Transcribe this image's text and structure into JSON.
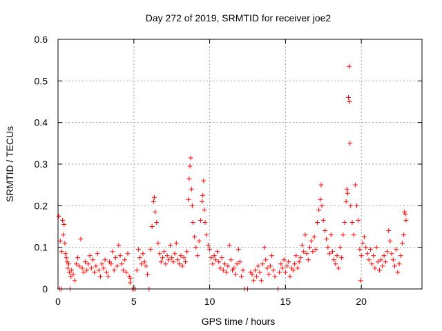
{
  "chart_data": {
    "type": "scatter",
    "title": "Day 272 of 2019, SRMTID for receiver joe2",
    "xlabel": "GPS time / hours",
    "ylabel": "SRMTID / TECUs",
    "xlim": [
      0,
      24
    ],
    "ylim": [
      0,
      0.6
    ],
    "xticks": [
      0,
      5,
      10,
      15,
      20
    ],
    "xtick_labels": [
      "0",
      "5",
      "10",
      "15",
      "20"
    ],
    "yticks": [
      0,
      0.1,
      0.2,
      0.3,
      0.4,
      0.5,
      0.6
    ],
    "ytick_labels": [
      "0",
      "0.1",
      "0.2",
      "0.3",
      "0.4",
      "0.5",
      "0.6"
    ],
    "grid": true,
    "marker": "+",
    "color": "#ff0000",
    "series": [
      {
        "name": "SRMTID",
        "points": [
          [
            0.05,
            0.175
          ],
          [
            0.1,
            0.0
          ],
          [
            0.15,
            0.115
          ],
          [
            0.2,
            0.0
          ],
          [
            0.25,
            0.09
          ],
          [
            0.3,
            0.165
          ],
          [
            0.35,
            0.13
          ],
          [
            0.4,
            0.155
          ],
          [
            0.45,
            0.11
          ],
          [
            0.5,
            0.085
          ],
          [
            0.55,
            0.075
          ],
          [
            0.6,
            0.065
          ],
          [
            0.65,
            0.05
          ],
          [
            0.7,
            0.06
          ],
          [
            0.75,
            0.04
          ],
          [
            0.8,
            0.0
          ],
          [
            0.85,
            0.03
          ],
          [
            0.9,
            0.045
          ],
          [
            1.0,
            0.035
          ],
          [
            1.1,
            0.02
          ],
          [
            1.2,
            0.06
          ],
          [
            1.3,
            0.075
          ],
          [
            1.4,
            0.055
          ],
          [
            1.5,
            0.12
          ],
          [
            1.6,
            0.05
          ],
          [
            1.7,
            0.04
          ],
          [
            1.8,
            0.065
          ],
          [
            1.9,
            0.045
          ],
          [
            2.0,
            0.06
          ],
          [
            2.1,
            0.08
          ],
          [
            2.2,
            0.05
          ],
          [
            2.3,
            0.07
          ],
          [
            2.4,
            0.04
          ],
          [
            2.5,
            0.055
          ],
          [
            2.6,
            0.085
          ],
          [
            2.7,
            0.045
          ],
          [
            2.8,
            0.03
          ],
          [
            2.9,
            0.06
          ],
          [
            3.0,
            0.05
          ],
          [
            3.1,
            0.07
          ],
          [
            3.2,
            0.04
          ],
          [
            3.3,
            0.03
          ],
          [
            3.4,
            0.065
          ],
          [
            3.5,
            0.06
          ],
          [
            3.6,
            0.09
          ],
          [
            3.7,
            0.045
          ],
          [
            3.8,
            0.075
          ],
          [
            3.9,
            0.055
          ],
          [
            4.0,
            0.105
          ],
          [
            4.1,
            0.08
          ],
          [
            4.2,
            0.06
          ],
          [
            4.3,
            0.045
          ],
          [
            4.4,
            0.07
          ],
          [
            4.5,
            0.04
          ],
          [
            4.6,
            0.085
          ],
          [
            4.7,
            0.03
          ],
          [
            4.75,
            0.015
          ],
          [
            4.8,
            0.025
          ],
          [
            4.9,
            0.0
          ],
          [
            5.0,
            0.0
          ],
          [
            5.1,
            0.0
          ],
          [
            5.2,
            0.045
          ],
          [
            5.3,
            0.095
          ],
          [
            5.4,
            0.075
          ],
          [
            5.5,
            0.06
          ],
          [
            5.6,
            0.085
          ],
          [
            5.7,
            0.065
          ],
          [
            5.8,
            0.055
          ],
          [
            5.9,
            0.035
          ],
          [
            6.0,
            0.0
          ],
          [
            6.1,
            0.095
          ],
          [
            6.2,
            0.15
          ],
          [
            6.3,
            0.21
          ],
          [
            6.35,
            0.22
          ],
          [
            6.4,
            0.185
          ],
          [
            6.5,
            0.16
          ],
          [
            6.6,
            0.11
          ],
          [
            6.7,
            0.085
          ],
          [
            6.8,
            0.065
          ],
          [
            6.9,
            0.075
          ],
          [
            7.0,
            0.09
          ],
          [
            7.1,
            0.06
          ],
          [
            7.2,
            0.08
          ],
          [
            7.3,
            0.07
          ],
          [
            7.4,
            0.105
          ],
          [
            7.5,
            0.075
          ],
          [
            7.6,
            0.065
          ],
          [
            7.7,
            0.085
          ],
          [
            7.8,
            0.11
          ],
          [
            7.9,
            0.07
          ],
          [
            8.0,
            0.06
          ],
          [
            8.1,
            0.08
          ],
          [
            8.2,
            0.055
          ],
          [
            8.3,
            0.075
          ],
          [
            8.4,
            0.065
          ],
          [
            8.5,
            0.09
          ],
          [
            8.6,
            0.215
          ],
          [
            8.65,
            0.265
          ],
          [
            8.7,
            0.295
          ],
          [
            8.75,
            0.315
          ],
          [
            8.8,
            0.24
          ],
          [
            8.85,
            0.2
          ],
          [
            8.9,
            0.16
          ],
          [
            9.0,
            0.125
          ],
          [
            9.1,
            0.1
          ],
          [
            9.2,
            0.08
          ],
          [
            9.3,
            0.115
          ],
          [
            9.4,
            0.165
          ],
          [
            9.5,
            0.21
          ],
          [
            9.55,
            0.225
          ],
          [
            9.6,
            0.26
          ],
          [
            9.65,
            0.19
          ],
          [
            9.7,
            0.16
          ],
          [
            9.8,
            0.13
          ],
          [
            9.9,
            0.105
          ],
          [
            10.0,
            0.095
          ],
          [
            10.1,
            0.075
          ],
          [
            10.2,
            0.06
          ],
          [
            10.3,
            0.08
          ],
          [
            10.4,
            0.07
          ],
          [
            10.5,
            0.09
          ],
          [
            10.6,
            0.065
          ],
          [
            10.7,
            0.05
          ],
          [
            10.8,
            0.075
          ],
          [
            10.9,
            0.045
          ],
          [
            11.0,
            0.06
          ],
          [
            11.1,
            0.04
          ],
          [
            11.2,
            0.055
          ],
          [
            11.3,
            0.105
          ],
          [
            11.4,
            0.07
          ],
          [
            11.5,
            0.045
          ],
          [
            11.6,
            0.05
          ],
          [
            11.7,
            0.035
          ],
          [
            11.8,
            0.06
          ],
          [
            11.9,
            0.095
          ],
          [
            12.0,
            0.065
          ],
          [
            12.1,
            0.03
          ],
          [
            12.2,
            0.045
          ],
          [
            12.3,
            0.0
          ],
          [
            12.5,
            0.0
          ],
          [
            12.7,
            0.04
          ],
          [
            12.8,
            0.035
          ],
          [
            12.9,
            0.02
          ],
          [
            13.0,
            0.045
          ],
          [
            13.1,
            0.03
          ],
          [
            13.2,
            0.055
          ],
          [
            13.3,
            0.04
          ],
          [
            13.4,
            0.02
          ],
          [
            13.5,
            0.06
          ],
          [
            13.6,
            0.1
          ],
          [
            13.7,
            0.07
          ],
          [
            13.8,
            0.05
          ],
          [
            13.9,
            0.035
          ],
          [
            14.0,
            0.055
          ],
          [
            14.1,
            0.08
          ],
          [
            14.2,
            0.045
          ],
          [
            14.3,
            0.03
          ],
          [
            14.5,
            0.0
          ],
          [
            14.6,
            0.04
          ],
          [
            14.7,
            0.06
          ],
          [
            14.8,
            0.05
          ],
          [
            14.9,
            0.07
          ],
          [
            15.0,
            0.04
          ],
          [
            15.1,
            0.055
          ],
          [
            15.2,
            0.065
          ],
          [
            15.3,
            0.03
          ],
          [
            15.4,
            0.05
          ],
          [
            15.5,
            0.045
          ],
          [
            15.6,
            0.06
          ],
          [
            15.7,
            0.08
          ],
          [
            15.8,
            0.05
          ],
          [
            15.9,
            0.065
          ],
          [
            16.0,
            0.075
          ],
          [
            16.1,
            0.105
          ],
          [
            16.2,
            0.09
          ],
          [
            16.3,
            0.13
          ],
          [
            16.4,
            0.085
          ],
          [
            16.5,
            0.07
          ],
          [
            16.6,
            0.1
          ],
          [
            16.7,
            0.115
          ],
          [
            16.8,
            0.09
          ],
          [
            16.9,
            0.125
          ],
          [
            17.0,
            0.095
          ],
          [
            17.1,
            0.16
          ],
          [
            17.2,
            0.19
          ],
          [
            17.3,
            0.215
          ],
          [
            17.35,
            0.25
          ],
          [
            17.4,
            0.2
          ],
          [
            17.5,
            0.165
          ],
          [
            17.6,
            0.14
          ],
          [
            17.7,
            0.12
          ],
          [
            17.8,
            0.1
          ],
          [
            17.9,
            0.085
          ],
          [
            18.0,
            0.13
          ],
          [
            18.1,
            0.09
          ],
          [
            18.2,
            0.07
          ],
          [
            18.3,
            0.06
          ],
          [
            18.4,
            0.08
          ],
          [
            18.5,
            0.05
          ],
          [
            18.6,
            0.1
          ],
          [
            18.7,
            0.075
          ],
          [
            18.8,
            0.13
          ],
          [
            18.9,
            0.16
          ],
          [
            19.0,
            0.21
          ],
          [
            19.05,
            0.24
          ],
          [
            19.1,
            0.23
          ],
          [
            19.15,
            0.46
          ],
          [
            19.2,
            0.535
          ],
          [
            19.22,
            0.45
          ],
          [
            19.25,
            0.35
          ],
          [
            19.3,
            0.2
          ],
          [
            19.4,
            0.16
          ],
          [
            19.5,
            0.13
          ],
          [
            19.6,
            0.25
          ],
          [
            19.7,
            0.2
          ],
          [
            19.8,
            0.165
          ],
          [
            19.9,
            0.095
          ],
          [
            19.95,
            0.02
          ],
          [
            20.0,
            0.08
          ],
          [
            20.1,
            0.11
          ],
          [
            20.2,
            0.125
          ],
          [
            20.3,
            0.1
          ],
          [
            20.4,
            0.085
          ],
          [
            20.5,
            0.07
          ],
          [
            20.6,
            0.095
          ],
          [
            20.7,
            0.06
          ],
          [
            20.8,
            0.08
          ],
          [
            20.9,
            0.05
          ],
          [
            21.0,
            0.1
          ],
          [
            21.1,
            0.065
          ],
          [
            21.2,
            0.045
          ],
          [
            21.3,
            0.07
          ],
          [
            21.4,
            0.055
          ],
          [
            21.5,
            0.08
          ],
          [
            21.6,
            0.065
          ],
          [
            21.7,
            0.09
          ],
          [
            21.8,
            0.14
          ],
          [
            21.9,
            0.115
          ],
          [
            22.0,
            0.085
          ],
          [
            22.1,
            0.07
          ],
          [
            22.2,
            0.055
          ],
          [
            22.3,
            0.095
          ],
          [
            22.4,
            0.04
          ],
          [
            22.5,
            0.06
          ],
          [
            22.6,
            0.08
          ],
          [
            22.7,
            0.11
          ],
          [
            22.8,
            0.13
          ],
          [
            22.85,
            0.185
          ],
          [
            22.9,
            0.18
          ],
          [
            22.95,
            0.165
          ]
        ]
      }
    ]
  }
}
